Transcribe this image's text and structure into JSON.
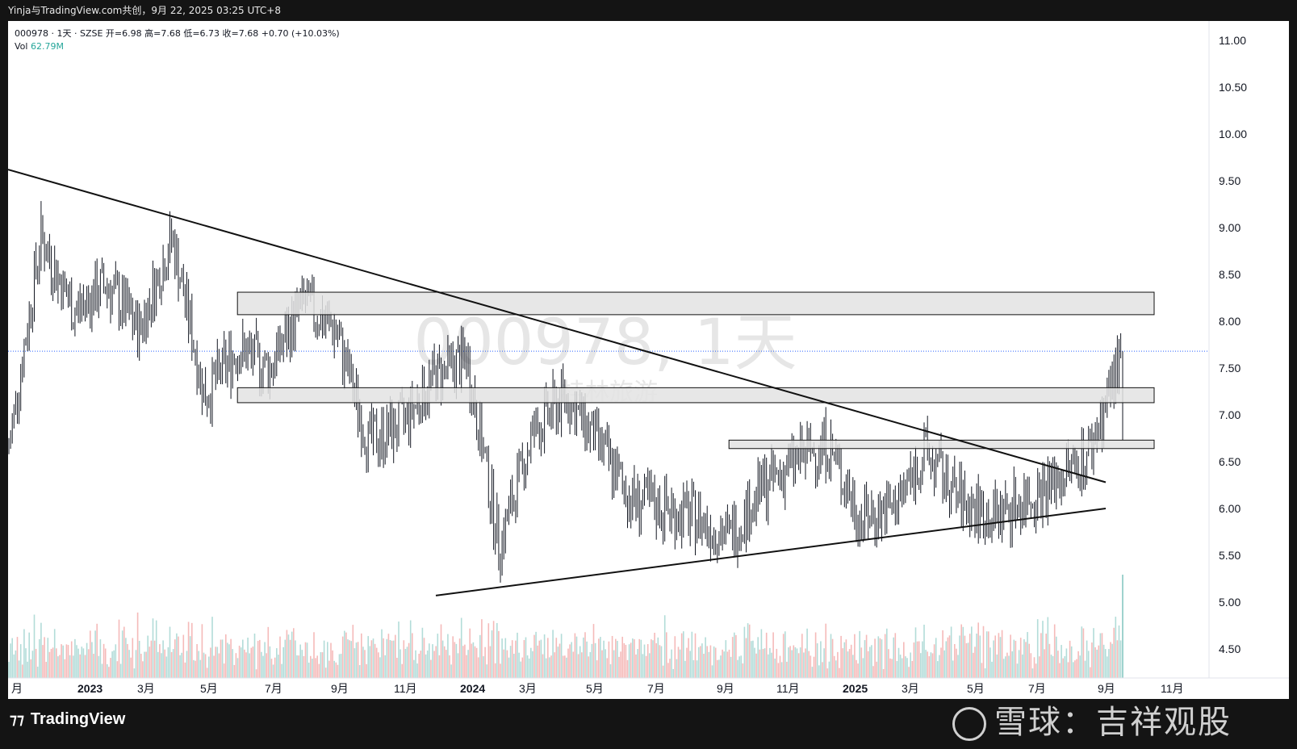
{
  "header": {
    "text": "Yinja与TradingView.com共创，9月 22, 2025 03:25 UTC+8"
  },
  "legend": {
    "symbol_line": "000978 · 1天 · SZSE  开=6.98  高=7.68  低=6.73  收=7.68  +0.70 (+10.03%)",
    "vol_label": "Vol",
    "vol_value": "62.79M"
  },
  "watermark": {
    "symbol": "000978, 1天",
    "name": "桂林旅游"
  },
  "footer": {
    "brand": "TradingView",
    "site_watermark": "雪球：吉祥观股"
  },
  "colors": {
    "up": "#26a69a",
    "down": "#ef5350",
    "bars": "#131722",
    "price_line": "#2962ff"
  },
  "chart_data": {
    "type": "line",
    "style": "ohlc-bars",
    "y_ticks": [
      "11.00",
      "10.50",
      "10.00",
      "9.50",
      "9.00",
      "8.50",
      "8.00",
      "7.50",
      "7.00",
      "6.50",
      "6.00",
      "5.50",
      "5.00",
      "4.50"
    ],
    "ylim": [
      4.5,
      11.0
    ],
    "x_ticks": [
      "月",
      "2023",
      "3月",
      "5月",
      "7月",
      "9月",
      "11月",
      "2024",
      "3月",
      "5月",
      "7月",
      "9月",
      "11月",
      "2025",
      "3月",
      "5月",
      "7月",
      "9月",
      "11月"
    ],
    "current_price": 7.68,
    "series": [
      {
        "name": "000978",
        "x": [
          "2022-11",
          "2022-12",
          "2023-01",
          "2023-02",
          "2023-03",
          "2023-04",
          "2023-05",
          "2023-06",
          "2023-07",
          "2023-08",
          "2023-09",
          "2023-10",
          "2023-11",
          "2023-12",
          "2024-01",
          "2024-02",
          "2024-03",
          "2024-04",
          "2024-05",
          "2024-06",
          "2024-07",
          "2024-08",
          "2024-09",
          "2024-10",
          "2024-11",
          "2024-12",
          "2025-01",
          "2025-02",
          "2025-03",
          "2025-04",
          "2025-05",
          "2025-06",
          "2025-07",
          "2025-08",
          "2025-09"
        ],
        "values": [
          6.6,
          8.9,
          8.1,
          8.4,
          7.9,
          8.9,
          7.2,
          7.7,
          7.5,
          8.2,
          7.9,
          6.7,
          6.9,
          7.4,
          7.6,
          5.6,
          6.8,
          7.2,
          6.7,
          6.1,
          6.0,
          5.9,
          5.7,
          6.2,
          6.5,
          6.7,
          5.9,
          6.0,
          6.6,
          6.1,
          5.9,
          6.1,
          6.3,
          6.6,
          7.68
        ]
      }
    ],
    "volume_last": "62.79M",
    "annotations": {
      "trendlines": [
        {
          "from": [
            "2022-11",
            9.62
          ],
          "to": [
            "2025-09",
            6.28
          ]
        },
        {
          "from": [
            "2023-12",
            5.07
          ],
          "to": [
            "2025-09",
            6.0
          ]
        }
      ],
      "zones": [
        {
          "from": "2023-06",
          "to": "2025-10",
          "low": 8.07,
          "high": 8.31
        },
        {
          "from": "2023-06",
          "to": "2025-10",
          "low": 7.13,
          "high": 7.29
        },
        {
          "from": "2024-09",
          "to": "2025-10",
          "low": 6.64,
          "high": 6.73
        }
      ]
    }
  }
}
